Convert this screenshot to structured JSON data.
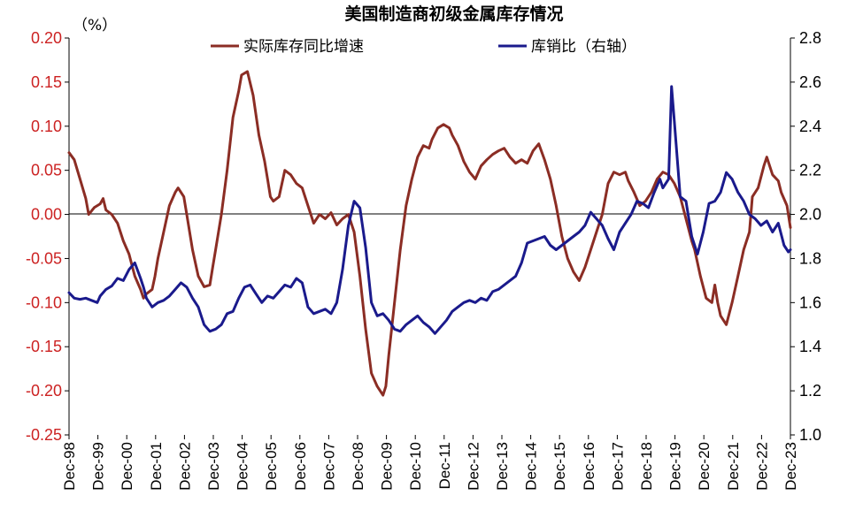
{
  "chart_data": {
    "type": "line",
    "title": "美国制造商初级金属库存情况",
    "left_unit": "（%）",
    "legend_position": "top",
    "colors": {
      "yoy": "#8B2D24",
      "ratio": "#1A1A8C",
      "left_tick": "#CC2222",
      "axis": "#000000"
    },
    "y_left": {
      "min": -0.25,
      "max": 0.2,
      "ticks": [
        0.2,
        0.15,
        0.1,
        0.05,
        0.0,
        -0.05,
        -0.1,
        -0.15,
        -0.2,
        -0.25
      ],
      "tick_labels": [
        "0.20",
        "0.15",
        "0.10",
        "0.05",
        "0.00",
        "-0.05",
        "-0.10",
        "-0.15",
        "-0.20",
        "-0.25"
      ]
    },
    "y_right": {
      "min": 1.0,
      "max": 2.8,
      "ticks": [
        2.8,
        2.6,
        2.4,
        2.2,
        2.0,
        1.8,
        1.6,
        1.4,
        1.2,
        1.0
      ],
      "tick_labels": [
        "2.8",
        "2.6",
        "2.4",
        "2.2",
        "2.0",
        "1.8",
        "1.6",
        "1.4",
        "1.2",
        "1.0"
      ]
    },
    "x_range": [
      1998.92,
      2023.92
    ],
    "x_ticks": [
      {
        "label": "Dec-98",
        "x": 1998.92
      },
      {
        "label": "Dec-99",
        "x": 1999.92
      },
      {
        "label": "Dec-00",
        "x": 2000.92
      },
      {
        "label": "Dec-01",
        "x": 2001.92
      },
      {
        "label": "Dec-02",
        "x": 2002.92
      },
      {
        "label": "Dec-03",
        "x": 2003.92
      },
      {
        "label": "Dec-04",
        "x": 2004.92
      },
      {
        "label": "Dec-05",
        "x": 2005.92
      },
      {
        "label": "Dec-06",
        "x": 2006.92
      },
      {
        "label": "Dec-07",
        "x": 2007.92
      },
      {
        "label": "Dec-08",
        "x": 2008.92
      },
      {
        "label": "Dec-09",
        "x": 2009.92
      },
      {
        "label": "Dec-10",
        "x": 2010.92
      },
      {
        "label": "Dec-11",
        "x": 2011.92
      },
      {
        "label": "Dec-12",
        "x": 2012.92
      },
      {
        "label": "Dec-13",
        "x": 2013.92
      },
      {
        "label": "Dec-14",
        "x": 2014.92
      },
      {
        "label": "Dec-15",
        "x": 2015.92
      },
      {
        "label": "Dec-16",
        "x": 2016.92
      },
      {
        "label": "Dec-17",
        "x": 2017.92
      },
      {
        "label": "Dec-18",
        "x": 2018.92
      },
      {
        "label": "Dec-19",
        "x": 2019.92
      },
      {
        "label": "Dec-20",
        "x": 2020.92
      },
      {
        "label": "Dec-21",
        "x": 2021.92
      },
      {
        "label": "Dec-22",
        "x": 2022.92
      },
      {
        "label": "Dec-23",
        "x": 2023.92
      }
    ],
    "series": [
      {
        "name": "实际库存同比增速",
        "axis": "left",
        "points": [
          [
            1998.92,
            0.07
          ],
          [
            1999.1,
            0.062
          ],
          [
            1999.3,
            0.04
          ],
          [
            1999.5,
            0.018
          ],
          [
            1999.6,
            0.0
          ],
          [
            1999.8,
            0.008
          ],
          [
            2000.0,
            0.012
          ],
          [
            2000.1,
            0.018
          ],
          [
            2000.2,
            0.005
          ],
          [
            2000.4,
            0.0
          ],
          [
            2000.6,
            -0.01
          ],
          [
            2000.8,
            -0.03
          ],
          [
            2001.0,
            -0.045
          ],
          [
            2001.2,
            -0.07
          ],
          [
            2001.4,
            -0.085
          ],
          [
            2001.5,
            -0.095
          ],
          [
            2001.6,
            -0.09
          ],
          [
            2001.8,
            -0.085
          ],
          [
            2001.9,
            -0.07
          ],
          [
            2002.0,
            -0.05
          ],
          [
            2002.2,
            -0.02
          ],
          [
            2002.4,
            0.01
          ],
          [
            2002.6,
            0.025
          ],
          [
            2002.7,
            0.03
          ],
          [
            2002.9,
            0.02
          ],
          [
            2003.0,
            0.0
          ],
          [
            2003.2,
            -0.04
          ],
          [
            2003.4,
            -0.07
          ],
          [
            2003.6,
            -0.082
          ],
          [
            2003.8,
            -0.08
          ],
          [
            2003.9,
            -0.06
          ],
          [
            2004.0,
            -0.04
          ],
          [
            2004.2,
            0.0
          ],
          [
            2004.4,
            0.05
          ],
          [
            2004.6,
            0.11
          ],
          [
            2004.8,
            0.14
          ],
          [
            2004.9,
            0.158
          ],
          [
            2005.1,
            0.162
          ],
          [
            2005.3,
            0.135
          ],
          [
            2005.5,
            0.09
          ],
          [
            2005.7,
            0.06
          ],
          [
            2005.8,
            0.04
          ],
          [
            2005.9,
            0.02
          ],
          [
            2006.0,
            0.015
          ],
          [
            2006.2,
            0.02
          ],
          [
            2006.4,
            0.05
          ],
          [
            2006.6,
            0.045
          ],
          [
            2006.8,
            0.035
          ],
          [
            2007.0,
            0.03
          ],
          [
            2007.2,
            0.01
          ],
          [
            2007.4,
            -0.01
          ],
          [
            2007.6,
            0.0
          ],
          [
            2007.8,
            -0.005
          ],
          [
            2008.0,
            0.002
          ],
          [
            2008.2,
            -0.012
          ],
          [
            2008.4,
            -0.005
          ],
          [
            2008.6,
            0.0
          ],
          [
            2008.8,
            -0.02
          ],
          [
            2009.0,
            -0.07
          ],
          [
            2009.2,
            -0.13
          ],
          [
            2009.4,
            -0.18
          ],
          [
            2009.6,
            -0.195
          ],
          [
            2009.8,
            -0.205
          ],
          [
            2009.9,
            -0.195
          ],
          [
            2010.0,
            -0.16
          ],
          [
            2010.2,
            -0.1
          ],
          [
            2010.4,
            -0.04
          ],
          [
            2010.6,
            0.01
          ],
          [
            2010.8,
            0.04
          ],
          [
            2011.0,
            0.065
          ],
          [
            2011.2,
            0.078
          ],
          [
            2011.4,
            0.075
          ],
          [
            2011.5,
            0.085
          ],
          [
            2011.7,
            0.098
          ],
          [
            2011.9,
            0.102
          ],
          [
            2012.1,
            0.098
          ],
          [
            2012.2,
            0.09
          ],
          [
            2012.4,
            0.078
          ],
          [
            2012.6,
            0.06
          ],
          [
            2012.8,
            0.048
          ],
          [
            2013.0,
            0.04
          ],
          [
            2013.2,
            0.055
          ],
          [
            2013.4,
            0.062
          ],
          [
            2013.6,
            0.068
          ],
          [
            2013.8,
            0.072
          ],
          [
            2014.0,
            0.075
          ],
          [
            2014.2,
            0.065
          ],
          [
            2014.4,
            0.058
          ],
          [
            2014.6,
            0.062
          ],
          [
            2014.8,
            0.058
          ],
          [
            2015.0,
            0.072
          ],
          [
            2015.2,
            0.08
          ],
          [
            2015.4,
            0.062
          ],
          [
            2015.6,
            0.04
          ],
          [
            2015.8,
            0.01
          ],
          [
            2016.0,
            -0.025
          ],
          [
            2016.2,
            -0.05
          ],
          [
            2016.4,
            -0.065
          ],
          [
            2016.6,
            -0.075
          ],
          [
            2016.8,
            -0.06
          ],
          [
            2017.0,
            -0.04
          ],
          [
            2017.2,
            -0.02
          ],
          [
            2017.4,
            0.0
          ],
          [
            2017.6,
            0.035
          ],
          [
            2017.8,
            0.048
          ],
          [
            2018.0,
            0.045
          ],
          [
            2018.2,
            0.048
          ],
          [
            2018.3,
            0.038
          ],
          [
            2018.5,
            0.025
          ],
          [
            2018.7,
            0.01
          ],
          [
            2018.9,
            0.015
          ],
          [
            2019.1,
            0.025
          ],
          [
            2019.3,
            0.04
          ],
          [
            2019.5,
            0.048
          ],
          [
            2019.7,
            0.045
          ],
          [
            2019.9,
            0.035
          ],
          [
            2020.1,
            0.02
          ],
          [
            2020.3,
            -0.005
          ],
          [
            2020.5,
            -0.03
          ],
          [
            2020.6,
            -0.04
          ],
          [
            2020.8,
            -0.07
          ],
          [
            2021.0,
            -0.095
          ],
          [
            2021.2,
            -0.1
          ],
          [
            2021.3,
            -0.08
          ],
          [
            2021.4,
            -0.1
          ],
          [
            2021.5,
            -0.115
          ],
          [
            2021.7,
            -0.125
          ],
          [
            2021.9,
            -0.1
          ],
          [
            2022.1,
            -0.07
          ],
          [
            2022.3,
            -0.04
          ],
          [
            2022.5,
            -0.02
          ],
          [
            2022.6,
            0.02
          ],
          [
            2022.8,
            0.03
          ],
          [
            2023.0,
            0.055
          ],
          [
            2023.1,
            0.065
          ],
          [
            2023.3,
            0.045
          ],
          [
            2023.5,
            0.038
          ],
          [
            2023.6,
            0.025
          ],
          [
            2023.8,
            0.01
          ],
          [
            2023.92,
            -0.015
          ]
        ]
      },
      {
        "name": "库销比（右轴）",
        "axis": "right",
        "points": [
          [
            1998.92,
            1.645
          ],
          [
            1999.1,
            1.62
          ],
          [
            1999.3,
            1.615
          ],
          [
            1999.5,
            1.62
          ],
          [
            1999.7,
            1.61
          ],
          [
            1999.9,
            1.6
          ],
          [
            2000.0,
            1.63
          ],
          [
            2000.2,
            1.66
          ],
          [
            2000.4,
            1.675
          ],
          [
            2000.6,
            1.71
          ],
          [
            2000.8,
            1.7
          ],
          [
            2001.0,
            1.75
          ],
          [
            2001.2,
            1.78
          ],
          [
            2001.4,
            1.71
          ],
          [
            2001.5,
            1.67
          ],
          [
            2001.6,
            1.62
          ],
          [
            2001.8,
            1.58
          ],
          [
            2002.0,
            1.6
          ],
          [
            2002.2,
            1.61
          ],
          [
            2002.4,
            1.63
          ],
          [
            2002.6,
            1.66
          ],
          [
            2002.8,
            1.69
          ],
          [
            2003.0,
            1.67
          ],
          [
            2003.2,
            1.62
          ],
          [
            2003.4,
            1.58
          ],
          [
            2003.6,
            1.5
          ],
          [
            2003.8,
            1.47
          ],
          [
            2004.0,
            1.48
          ],
          [
            2004.2,
            1.5
          ],
          [
            2004.4,
            1.55
          ],
          [
            2004.6,
            1.56
          ],
          [
            2004.8,
            1.62
          ],
          [
            2005.0,
            1.67
          ],
          [
            2005.2,
            1.68
          ],
          [
            2005.4,
            1.64
          ],
          [
            2005.6,
            1.6
          ],
          [
            2005.8,
            1.63
          ],
          [
            2006.0,
            1.62
          ],
          [
            2006.2,
            1.65
          ],
          [
            2006.4,
            1.68
          ],
          [
            2006.6,
            1.67
          ],
          [
            2006.8,
            1.71
          ],
          [
            2007.0,
            1.69
          ],
          [
            2007.2,
            1.58
          ],
          [
            2007.4,
            1.55
          ],
          [
            2007.6,
            1.56
          ],
          [
            2007.8,
            1.57
          ],
          [
            2008.0,
            1.55
          ],
          [
            2008.2,
            1.6
          ],
          [
            2008.4,
            1.75
          ],
          [
            2008.6,
            1.95
          ],
          [
            2008.8,
            2.06
          ],
          [
            2009.0,
            2.03
          ],
          [
            2009.2,
            1.85
          ],
          [
            2009.4,
            1.6
          ],
          [
            2009.6,
            1.54
          ],
          [
            2009.8,
            1.55
          ],
          [
            2010.0,
            1.52
          ],
          [
            2010.2,
            1.48
          ],
          [
            2010.4,
            1.47
          ],
          [
            2010.6,
            1.5
          ],
          [
            2010.8,
            1.52
          ],
          [
            2011.0,
            1.54
          ],
          [
            2011.2,
            1.51
          ],
          [
            2011.4,
            1.49
          ],
          [
            2011.6,
            1.46
          ],
          [
            2011.8,
            1.49
          ],
          [
            2012.0,
            1.52
          ],
          [
            2012.2,
            1.56
          ],
          [
            2012.4,
            1.58
          ],
          [
            2012.6,
            1.6
          ],
          [
            2012.8,
            1.61
          ],
          [
            2013.0,
            1.6
          ],
          [
            2013.2,
            1.62
          ],
          [
            2013.4,
            1.61
          ],
          [
            2013.6,
            1.65
          ],
          [
            2013.8,
            1.66
          ],
          [
            2014.0,
            1.68
          ],
          [
            2014.2,
            1.7
          ],
          [
            2014.4,
            1.72
          ],
          [
            2014.6,
            1.78
          ],
          [
            2014.8,
            1.87
          ],
          [
            2015.0,
            1.88
          ],
          [
            2015.2,
            1.89
          ],
          [
            2015.4,
            1.9
          ],
          [
            2015.6,
            1.86
          ],
          [
            2015.8,
            1.84
          ],
          [
            2016.0,
            1.86
          ],
          [
            2016.2,
            1.88
          ],
          [
            2016.4,
            1.9
          ],
          [
            2016.6,
            1.92
          ],
          [
            2016.8,
            1.95
          ],
          [
            2017.0,
            2.01
          ],
          [
            2017.2,
            1.98
          ],
          [
            2017.4,
            1.95
          ],
          [
            2017.6,
            1.89
          ],
          [
            2017.8,
            1.84
          ],
          [
            2018.0,
            1.92
          ],
          [
            2018.2,
            1.96
          ],
          [
            2018.4,
            2.0
          ],
          [
            2018.6,
            2.06
          ],
          [
            2018.8,
            2.05
          ],
          [
            2019.0,
            2.03
          ],
          [
            2019.2,
            2.1
          ],
          [
            2019.4,
            2.16
          ],
          [
            2019.5,
            2.12
          ],
          [
            2019.7,
            2.16
          ],
          [
            2019.8,
            2.58
          ],
          [
            2019.9,
            2.42
          ],
          [
            2020.1,
            2.08
          ],
          [
            2020.3,
            2.06
          ],
          [
            2020.5,
            1.9
          ],
          [
            2020.7,
            1.82
          ],
          [
            2020.9,
            1.92
          ],
          [
            2021.1,
            2.05
          ],
          [
            2021.3,
            2.06
          ],
          [
            2021.5,
            2.1
          ],
          [
            2021.7,
            2.19
          ],
          [
            2021.9,
            2.16
          ],
          [
            2022.1,
            2.1
          ],
          [
            2022.3,
            2.06
          ],
          [
            2022.5,
            2.0
          ],
          [
            2022.7,
            1.98
          ],
          [
            2022.9,
            1.95
          ],
          [
            2023.1,
            1.97
          ],
          [
            2023.3,
            1.92
          ],
          [
            2023.5,
            1.96
          ],
          [
            2023.7,
            1.86
          ],
          [
            2023.85,
            1.83
          ],
          [
            2023.92,
            1.84
          ]
        ]
      }
    ]
  }
}
